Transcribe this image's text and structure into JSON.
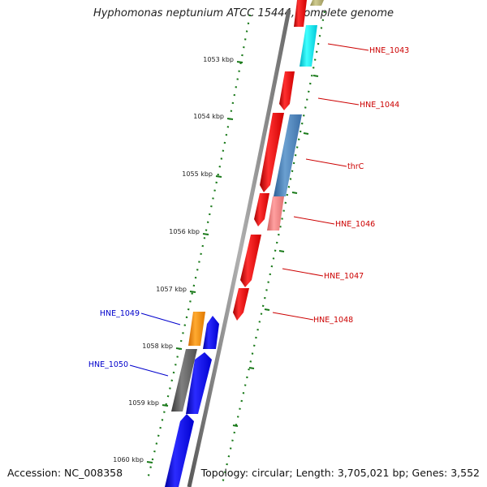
{
  "title": "Hyphomonas neptunium ATCC 15444, complete genome",
  "footer": {
    "accession": "Accession: NC_008358",
    "topology": "Topology: circular; Length: 3,705,021 bp; Genes: 3,552"
  },
  "kbp_ticks": [
    "1053 kbp",
    "1054 kbp",
    "1055 kbp",
    "1056 kbp",
    "1057 kbp",
    "1058 kbp",
    "1059 kbp",
    "1060 kbp"
  ],
  "right_labels": [
    "HNE_1043",
    "HNE_1044",
    "thrC",
    "HNE_1046",
    "HNE_1047",
    "HNE_1048"
  ],
  "left_labels": [
    "HNE_1049",
    "HNE_1050"
  ],
  "colors": {
    "forward_strand_gene": "#ff0000",
    "reverse_strand_gene": "#0000ff",
    "cyan_gene": "#00e5ee",
    "steelblue_gene": "#4a7fb5",
    "pink_gene": "#f08080",
    "orange_gene": "#ff8c00",
    "gray_gene": "#5f5f5f",
    "olive_gene": "#b5b070",
    "backbone": "#8a8a8a",
    "tick_marks": "#1a7a1a",
    "right_label_color": "#cc0000",
    "left_label_color": "#0000cc"
  }
}
